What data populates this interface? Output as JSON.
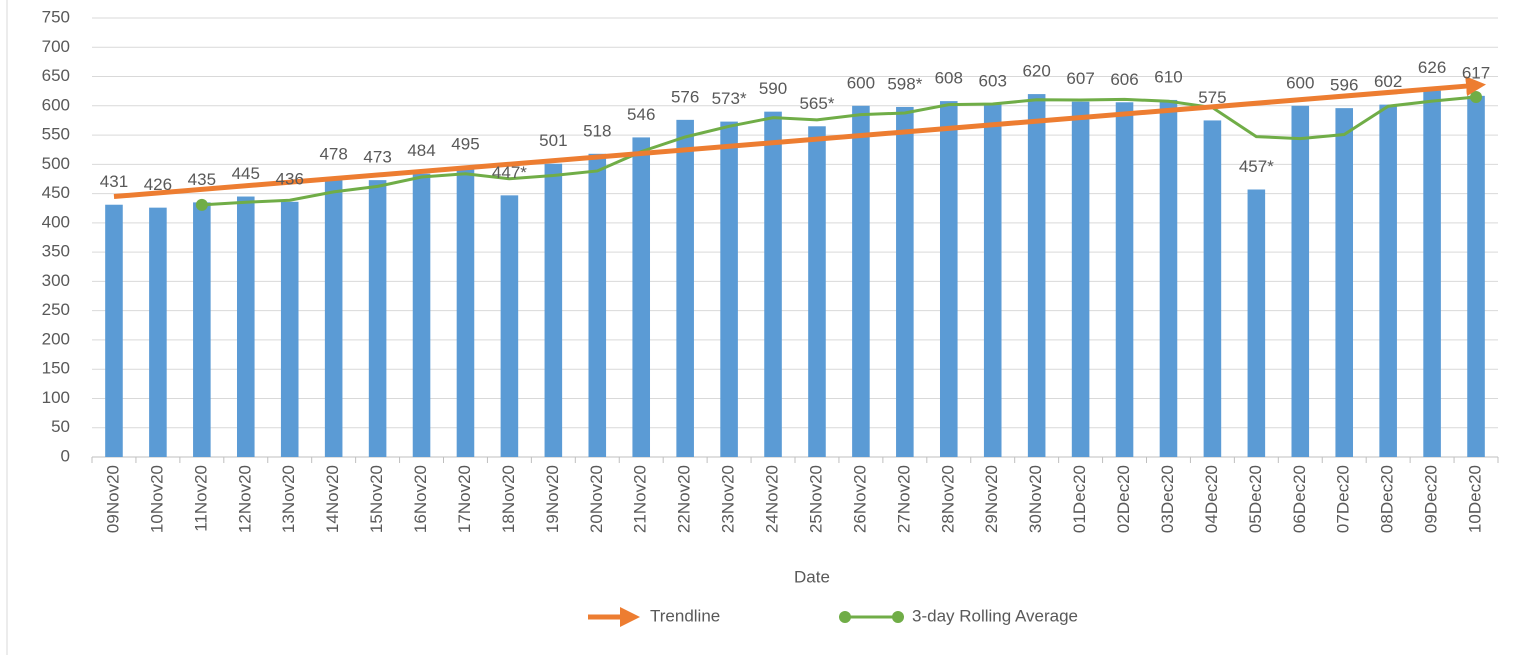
{
  "chart_data": {
    "type": "bar",
    "x_label": "Date",
    "categories": [
      "09Nov20",
      "10Nov20",
      "11Nov20",
      "12Nov20",
      "13Nov20",
      "14Nov20",
      "15Nov20",
      "16Nov20",
      "17Nov20",
      "18Nov20",
      "19Nov20",
      "20Nov20",
      "21Nov20",
      "22Nov20",
      "23Nov20",
      "24Nov20",
      "25Nov20",
      "26Nov20",
      "27Nov20",
      "28Nov20",
      "29Nov20",
      "30Nov20",
      "01Dec20",
      "02Dec20",
      "03Dec20",
      "04Dec20",
      "05Dec20",
      "06Dec20",
      "07Dec20",
      "08Dec20",
      "09Dec20",
      "10Dec20"
    ],
    "values": [
      431,
      426,
      435,
      445,
      436,
      478,
      473,
      484,
      495,
      447,
      501,
      518,
      546,
      576,
      573,
      590,
      565,
      600,
      598,
      608,
      603,
      620,
      607,
      606,
      610,
      575,
      457,
      600,
      596,
      602,
      626,
      617
    ],
    "value_labels": [
      "431",
      "426",
      "435",
      "445",
      "436",
      "478",
      "473",
      "484",
      "495",
      "447*",
      "501",
      "518",
      "546",
      "576",
      "573*",
      "590",
      "565*",
      "600",
      "598*",
      "608",
      "603",
      "620",
      "607",
      "606",
      "610",
      "575",
      "457*",
      "600",
      "596",
      "602",
      "626",
      "617"
    ],
    "color": "#5b9bd5",
    "series": [
      {
        "name": "3-day Rolling Average",
        "color": "#70ad47",
        "values": [
          null,
          null,
          430.7,
          435.3,
          438.7,
          453,
          462.3,
          478.3,
          484,
          475.3,
          481,
          488.7,
          521.7,
          546.7,
          565,
          579.7,
          576,
          585,
          587.7,
          602,
          603,
          610.3,
          610,
          611,
          607.7,
          597,
          547.3,
          544,
          551,
          599.3,
          608,
          615
        ]
      }
    ],
    "trendline": {
      "name": "Trendline",
      "color": "#ed7d31",
      "values": [
        445,
        635
      ]
    },
    "ylim": [
      0,
      750
    ],
    "yticks": [
      0,
      50,
      100,
      150,
      200,
      250,
      300,
      350,
      400,
      450,
      500,
      550,
      600,
      650,
      700,
      750
    ],
    "grid": true
  }
}
